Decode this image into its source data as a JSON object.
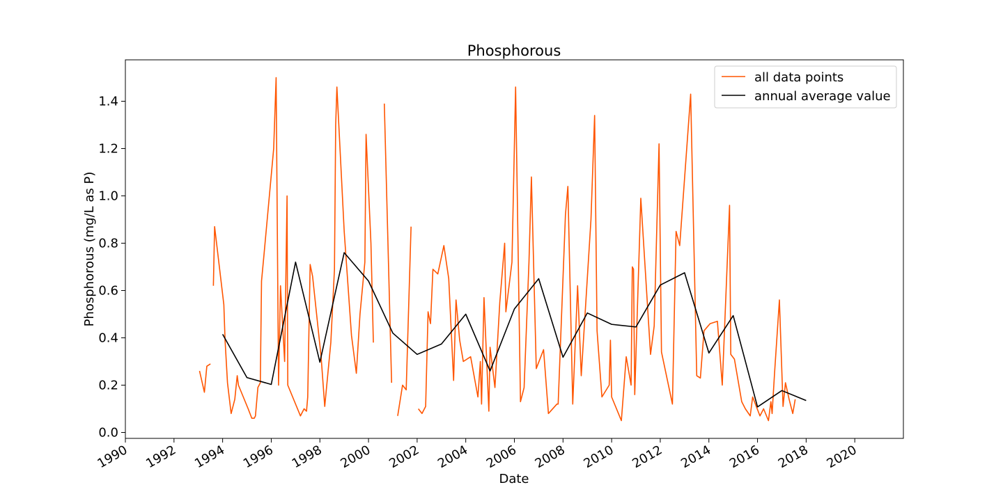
{
  "chart_data": {
    "type": "line",
    "title": "Phosphorous",
    "xlabel": "Date",
    "ylabel": "Phosphorous (mg/L as P)",
    "xlim": [
      1990,
      2022
    ],
    "ylim": [
      -0.025,
      1.575
    ],
    "x_ticks": [
      "1990",
      "1992",
      "1994",
      "1996",
      "1998",
      "2000",
      "2002",
      "2004",
      "2006",
      "2008",
      "2010",
      "2012",
      "2014",
      "2016",
      "2018",
      "2020"
    ],
    "y_ticks": [
      "0.0",
      "0.2",
      "0.4",
      "0.6",
      "0.8",
      "1.0",
      "1.2",
      "1.4"
    ],
    "legend_position": "top-right",
    "grid": false,
    "series": [
      {
        "name": "all data points",
        "color": "#ff5500",
        "segments": [
          [
            [
              1993.05,
              0.26
            ],
            [
              1993.25,
              0.17
            ],
            [
              1993.35,
              0.28
            ],
            [
              1993.5,
              0.29
            ]
          ],
          [
            [
              1993.62,
              0.62
            ],
            [
              1993.67,
              0.87
            ],
            [
              1994.05,
              0.54
            ],
            [
              1994.1,
              0.39
            ],
            [
              1994.2,
              0.21
            ],
            [
              1994.35,
              0.08
            ],
            [
              1994.5,
              0.14
            ],
            [
              1994.6,
              0.24
            ],
            [
              1994.65,
              0.2
            ],
            [
              1994.85,
              0.15
            ],
            [
              1995.05,
              0.1
            ],
            [
              1995.2,
              0.06
            ],
            [
              1995.3,
              0.06
            ],
            [
              1995.35,
              0.07
            ],
            [
              1995.45,
              0.19
            ],
            [
              1995.55,
              0.21
            ],
            [
              1995.6,
              0.64
            ],
            [
              1995.7,
              0.75
            ],
            [
              1996.1,
              1.2
            ],
            [
              1996.2,
              1.5
            ],
            [
              1996.3,
              0.2
            ],
            [
              1996.38,
              0.62
            ],
            [
              1996.55,
              0.3
            ],
            [
              1996.65,
              1.0
            ],
            [
              1996.68,
              0.2
            ],
            [
              1997.2,
              0.07
            ],
            [
              1997.35,
              0.1
            ],
            [
              1997.45,
              0.09
            ],
            [
              1997.5,
              0.15
            ],
            [
              1997.6,
              0.71
            ],
            [
              1997.7,
              0.66
            ],
            [
              1998.05,
              0.32
            ],
            [
              1998.2,
              0.11
            ],
            [
              1998.45,
              0.38
            ],
            [
              1998.6,
              0.69
            ],
            [
              1998.65,
              1.3
            ],
            [
              1998.7,
              1.46
            ],
            [
              1999.0,
              0.85
            ],
            [
              1999.3,
              0.41
            ],
            [
              1999.5,
              0.25
            ],
            [
              1999.65,
              0.5
            ],
            [
              1999.85,
              0.72
            ],
            [
              1999.9,
              1.26
            ],
            [
              2000.1,
              0.8
            ],
            [
              2000.2,
              0.38
            ]
          ],
          [
            [
              2000.65,
              1.39
            ],
            [
              2000.95,
              0.21
            ]
          ],
          [
            [
              2001.2,
              0.07
            ],
            [
              2001.4,
              0.2
            ],
            [
              2001.55,
              0.18
            ],
            [
              2001.75,
              0.87
            ]
          ],
          [
            [
              2002.05,
              0.1
            ],
            [
              2002.2,
              0.08
            ],
            [
              2002.35,
              0.11
            ],
            [
              2002.45,
              0.51
            ],
            [
              2002.55,
              0.46
            ],
            [
              2002.65,
              0.69
            ],
            [
              2002.85,
              0.67
            ],
            [
              2003.1,
              0.79
            ],
            [
              2003.3,
              0.65
            ],
            [
              2003.5,
              0.22
            ],
            [
              2003.6,
              0.56
            ],
            [
              2003.75,
              0.39
            ],
            [
              2003.9,
              0.3
            ],
            [
              2004.2,
              0.32
            ],
            [
              2004.5,
              0.15
            ],
            [
              2004.6,
              0.3
            ],
            [
              2004.65,
              0.12
            ],
            [
              2004.75,
              0.57
            ],
            [
              2004.95,
              0.09
            ],
            [
              2005.0,
              0.36
            ],
            [
              2005.2,
              0.19
            ],
            [
              2005.4,
              0.55
            ],
            [
              2005.6,
              0.8
            ],
            [
              2005.65,
              0.51
            ],
            [
              2005.9,
              0.72
            ],
            [
              2006.05,
              1.46
            ],
            [
              2006.25,
              0.13
            ],
            [
              2006.4,
              0.19
            ],
            [
              2006.6,
              0.72
            ],
            [
              2006.7,
              1.08
            ],
            [
              2006.9,
              0.27
            ],
            [
              2007.2,
              0.35
            ],
            [
              2007.4,
              0.08
            ],
            [
              2007.75,
              0.12
            ],
            [
              2007.8,
              0.12
            ],
            [
              2008.1,
              0.92
            ],
            [
              2008.2,
              1.04
            ],
            [
              2008.4,
              0.12
            ],
            [
              2008.6,
              0.62
            ],
            [
              2008.75,
              0.24
            ],
            [
              2009.15,
              0.9
            ],
            [
              2009.3,
              1.34
            ],
            [
              2009.4,
              0.43
            ],
            [
              2009.6,
              0.15
            ],
            [
              2009.9,
              0.2
            ],
            [
              2009.95,
              0.39
            ],
            [
              2010.0,
              0.15
            ],
            [
              2010.4,
              0.05
            ],
            [
              2010.6,
              0.32
            ],
            [
              2010.8,
              0.2
            ],
            [
              2010.85,
              0.7
            ],
            [
              2010.9,
              0.69
            ],
            [
              2010.95,
              0.16
            ],
            [
              2011.2,
              0.99
            ],
            [
              2011.6,
              0.33
            ],
            [
              2011.75,
              0.45
            ],
            [
              2011.95,
              1.22
            ],
            [
              2012.05,
              0.34
            ],
            [
              2012.5,
              0.12
            ],
            [
              2012.65,
              0.85
            ],
            [
              2012.8,
              0.79
            ],
            [
              2013.25,
              1.43
            ],
            [
              2013.5,
              0.24
            ],
            [
              2013.65,
              0.23
            ],
            [
              2013.8,
              0.43
            ],
            [
              2014.05,
              0.46
            ],
            [
              2014.35,
              0.47
            ],
            [
              2014.55,
              0.2
            ],
            [
              2014.85,
              0.96
            ],
            [
              2014.9,
              0.33
            ],
            [
              2015.05,
              0.31
            ],
            [
              2015.35,
              0.13
            ],
            [
              2015.5,
              0.1
            ],
            [
              2015.7,
              0.07
            ],
            [
              2015.8,
              0.15
            ],
            [
              2016.1,
              0.07
            ],
            [
              2016.25,
              0.1
            ],
            [
              2016.45,
              0.05
            ],
            [
              2016.55,
              0.13
            ],
            [
              2016.6,
              0.08
            ],
            [
              2016.7,
              0.25
            ],
            [
              2016.9,
              0.56
            ],
            [
              2017.05,
              0.11
            ],
            [
              2017.15,
              0.21
            ],
            [
              2017.3,
              0.14
            ],
            [
              2017.45,
              0.08
            ],
            [
              2017.55,
              0.14
            ]
          ]
        ]
      },
      {
        "name": "annual average value",
        "color": "#000000",
        "points": [
          [
            1994,
            0.415
          ],
          [
            1995,
            0.232
          ],
          [
            1996,
            0.203
          ],
          [
            1997,
            0.72
          ],
          [
            1998,
            0.297
          ],
          [
            1999,
            0.76
          ],
          [
            2000,
            0.64
          ],
          [
            2001,
            0.42
          ],
          [
            2002,
            0.33
          ],
          [
            2003,
            0.374
          ],
          [
            2004,
            0.5
          ],
          [
            2005,
            0.26
          ],
          [
            2006,
            0.522
          ],
          [
            2007,
            0.65
          ],
          [
            2008,
            0.318
          ],
          [
            2009,
            0.505
          ],
          [
            2010,
            0.457
          ],
          [
            2011,
            0.446
          ],
          [
            2012,
            0.623
          ],
          [
            2013,
            0.675
          ],
          [
            2014,
            0.336
          ],
          [
            2015,
            0.494
          ],
          [
            2016,
            0.108
          ],
          [
            2017,
            0.177
          ],
          [
            2018,
            0.135
          ]
        ]
      }
    ]
  }
}
